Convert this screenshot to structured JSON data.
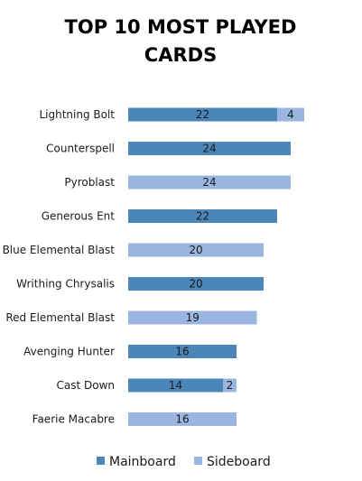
{
  "chart_data": {
    "type": "bar",
    "orientation": "horizontal",
    "stacked": true,
    "title_lines": [
      "TOP 10 MOST PLAYED",
      "CARDS"
    ],
    "xlabel": "",
    "ylabel": "",
    "xlim": [
      0,
      28
    ],
    "grid": false,
    "legend_position": "bottom",
    "categories": [
      "Lightning Bolt",
      "Counterspell",
      "Pyroblast",
      "Generous Ent",
      "Blue Elemental Blast",
      "Writhing Chrysalis",
      "Red Elemental Blast",
      "Avenging Hunter",
      "Cast Down",
      "Faerie Macabre"
    ],
    "series": [
      {
        "name": "Mainboard",
        "color": "#4a86b8",
        "values": [
          22,
          24,
          0,
          22,
          0,
          20,
          0,
          16,
          14,
          0
        ]
      },
      {
        "name": "Sideboard",
        "color": "#9ab5e0",
        "values": [
          4,
          0,
          24,
          0,
          20,
          0,
          19,
          0,
          2,
          16
        ]
      }
    ]
  }
}
